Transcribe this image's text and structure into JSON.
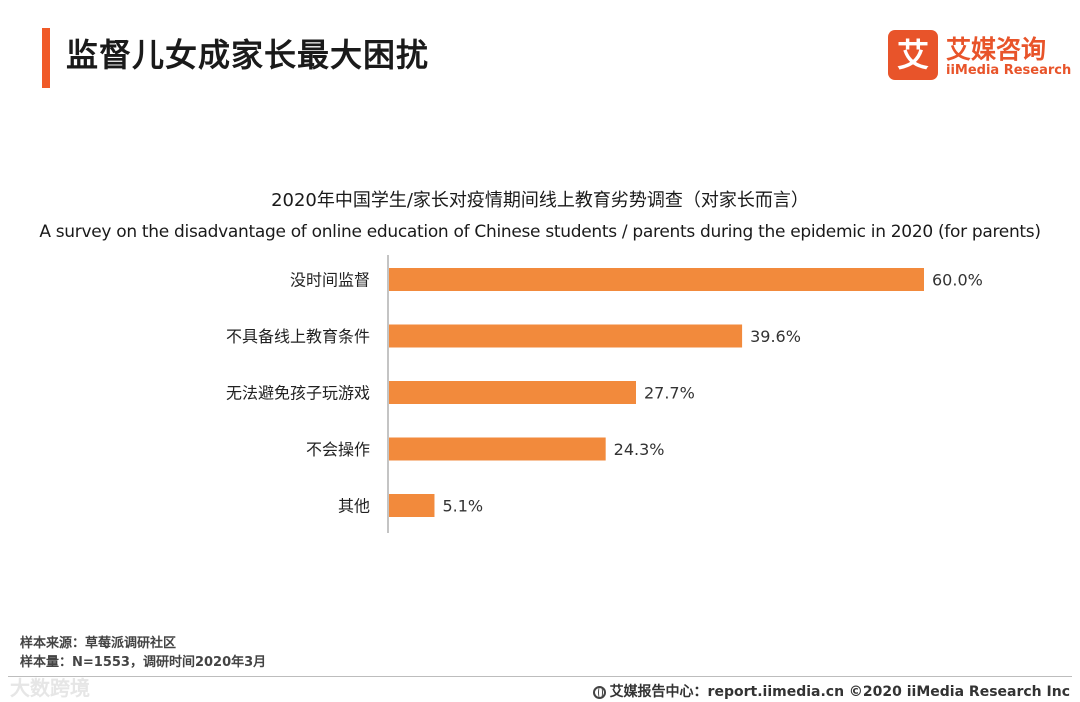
{
  "header": {
    "title": "监督儿女成家长最大困扰",
    "accent_color": "#f05a28"
  },
  "logo": {
    "mark": "艾",
    "cn": "艾媒咨询",
    "en": "iiMedia Research",
    "color": "#e8542a"
  },
  "chart_data": {
    "type": "bar",
    "orientation": "horizontal",
    "title": "2020年中国学生/家长对疫情期间线上教育劣势调查（对家长而言）",
    "subtitle": "A survey on the disadvantage of online education of Chinese students / parents during the epidemic in 2020 (for parents)",
    "categories": [
      "没时间监督",
      "不具备线上教育条件",
      "无法避免孩子玩游戏",
      "不会操作",
      "其他"
    ],
    "values": [
      60.0,
      39.6,
      27.7,
      24.3,
      5.1
    ],
    "value_labels": [
      "60.0%",
      "39.6%",
      "27.7%",
      "24.3%",
      "5.1%"
    ],
    "xlim": [
      0,
      60
    ],
    "grid": false,
    "bar_color": "#f28a3c"
  },
  "source": {
    "line1": "样本来源：草莓派调研社区",
    "line2": "样本量：N=1553，调研时间2020年3月"
  },
  "footer": {
    "text": "艾媒报告中心：report.iimedia.cn ©2020 iiMedia Research Inc",
    "icon": "globe-icon"
  },
  "watermark": {
    "text": "大数跨境"
  }
}
